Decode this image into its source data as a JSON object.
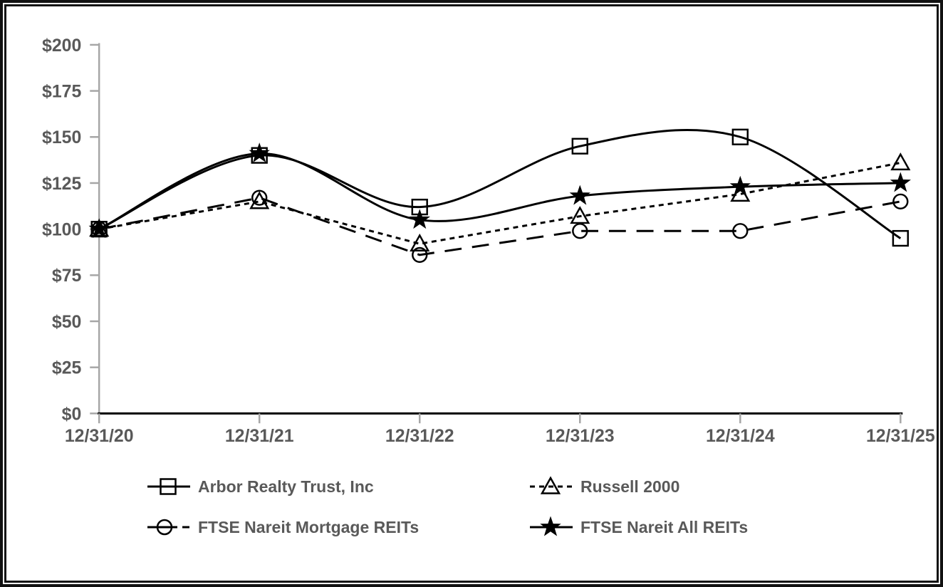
{
  "chart_data": {
    "type": "line",
    "title": "",
    "xlabel": "",
    "ylabel": "",
    "categories": [
      "12/31/20",
      "12/31/21",
      "12/31/22",
      "12/31/23",
      "12/31/24",
      "12/31/25"
    ],
    "y_ticks": [
      0,
      25,
      50,
      75,
      100,
      125,
      150,
      175,
      200
    ],
    "y_tick_labels": [
      "$0",
      "$25",
      "$50",
      "$75",
      "$100",
      "$125",
      "$150",
      "$175",
      "$200"
    ],
    "ylim": [
      0,
      200
    ],
    "grid": false,
    "legend_position": "bottom",
    "series": [
      {
        "name": "Arbor Realty Trust, Inc",
        "marker": "square",
        "line_style": "solid",
        "smooth": true,
        "values": [
          100,
          140,
          112,
          145,
          150,
          95
        ]
      },
      {
        "name": "Russell 2000",
        "marker": "triangle",
        "line_style": "short-dash",
        "smooth": false,
        "values": [
          100,
          115,
          92,
          107,
          119,
          136
        ]
      },
      {
        "name": "FTSE Nareit Mortgage REITs",
        "marker": "circle",
        "line_style": "long-dash",
        "smooth": false,
        "values": [
          100,
          117,
          86,
          99,
          99,
          115
        ]
      },
      {
        "name": "FTSE Nareit All REITs",
        "marker": "star",
        "line_style": "solid",
        "smooth": true,
        "values": [
          100,
          141,
          105,
          118,
          123,
          125
        ]
      }
    ],
    "colors": {
      "series_line": "#000000",
      "axis_label": "#595959",
      "y_axis_line": "#a6a6a6",
      "tick_line": "#a6a6a6",
      "x_axis_line": "#000000",
      "background": "#ffffff",
      "border": "#111111"
    }
  }
}
